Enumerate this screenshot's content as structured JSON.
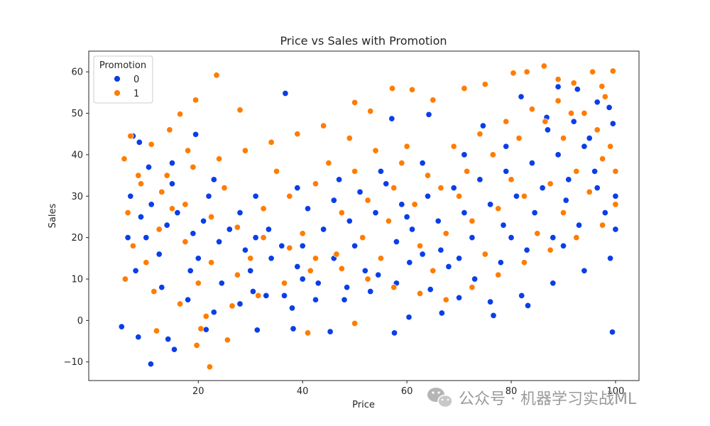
{
  "chart_data": {
    "type": "scatter",
    "title": "Price vs Sales with Promotion",
    "xlabel": "Price",
    "ylabel": "Sales",
    "xlim": [
      -1.0,
      104.5
    ],
    "ylim": [
      -14.5,
      65.0
    ],
    "xticks": [
      20,
      40,
      60,
      80,
      100
    ],
    "yticks": [
      -10,
      0,
      10,
      20,
      30,
      40,
      50,
      60
    ],
    "legend": {
      "title": "Promotion",
      "placement": "top-left"
    },
    "series": [
      {
        "name": "0",
        "color": "#0a3ee8",
        "points": [
          [
            5.3,
            -1.5
          ],
          [
            10.9,
            -10.5
          ],
          [
            15.4,
            -7.0
          ],
          [
            14.2,
            -4.5
          ],
          [
            8.5,
            -4.0
          ],
          [
            21.5,
            -2.2
          ],
          [
            31.3,
            -2.3
          ],
          [
            38.2,
            -2.0
          ],
          [
            45.3,
            -2.7
          ],
          [
            57.6,
            -3.0
          ],
          [
            99.4,
            -2.8
          ],
          [
            83.2,
            3.6
          ],
          [
            76.6,
            1.2
          ],
          [
            66.7,
            1.8
          ],
          [
            60.4,
            0.8
          ],
          [
            36.7,
            54.8
          ],
          [
            89.0,
            56.4
          ],
          [
            92.7,
            55.8
          ],
          [
            96.5,
            52.7
          ],
          [
            98.8,
            51.4
          ],
          [
            81.9,
            54.0
          ],
          [
            86.8,
            49.0
          ],
          [
            7.5,
            44.5
          ],
          [
            8.7,
            43.0
          ],
          [
            19.5,
            44.9
          ],
          [
            57.1,
            48.7
          ],
          [
            64.2,
            49.7
          ],
          [
            74.6,
            47.0
          ],
          [
            92.0,
            48.0
          ],
          [
            99.5,
            47.5
          ],
          [
            10.5,
            37.0
          ],
          [
            15.0,
            33.0
          ],
          [
            22.0,
            30.0
          ],
          [
            28.0,
            26.0
          ],
          [
            33.5,
            22.0
          ],
          [
            40.0,
            18.0
          ],
          [
            46.0,
            15.0
          ],
          [
            52.0,
            12.0
          ],
          [
            58.0,
            9.0
          ],
          [
            64.5,
            7.5
          ],
          [
            70.0,
            5.5
          ],
          [
            76.0,
            4.5
          ],
          [
            82.0,
            6.0
          ],
          [
            88.0,
            9.0
          ],
          [
            94.0,
            12.0
          ],
          [
            99.0,
            15.0
          ],
          [
            6.5,
            20.0
          ],
          [
            12.5,
            16.0
          ],
          [
            18.5,
            12.0
          ],
          [
            24.5,
            9.0
          ],
          [
            30.5,
            7.0
          ],
          [
            36.5,
            6.0
          ],
          [
            42.5,
            5.0
          ],
          [
            48.5,
            8.0
          ],
          [
            54.5,
            11.0
          ],
          [
            60.5,
            14.0
          ],
          [
            66.5,
            17.0
          ],
          [
            72.5,
            20.0
          ],
          [
            78.5,
            23.0
          ],
          [
            84.5,
            26.0
          ],
          [
            90.5,
            29.0
          ],
          [
            96.5,
            32.0
          ],
          [
            9.0,
            25.0
          ],
          [
            14.0,
            23.0
          ],
          [
            19.0,
            21.0
          ],
          [
            24.0,
            19.0
          ],
          [
            29.0,
            17.0
          ],
          [
            34.0,
            15.0
          ],
          [
            39.0,
            13.0
          ],
          [
            44.0,
            22.0
          ],
          [
            49.0,
            24.0
          ],
          [
            54.0,
            26.0
          ],
          [
            59.0,
            28.0
          ],
          [
            64.0,
            30.0
          ],
          [
            69.0,
            32.0
          ],
          [
            74.0,
            34.0
          ],
          [
            79.0,
            36.0
          ],
          [
            84.0,
            38.0
          ],
          [
            89.0,
            40.0
          ],
          [
            94.0,
            42.0
          ],
          [
            7.0,
            30.0
          ],
          [
            11.0,
            28.0
          ],
          [
            16.0,
            26.0
          ],
          [
            21.0,
            24.0
          ],
          [
            26.0,
            22.0
          ],
          [
            31.0,
            20.0
          ],
          [
            36.0,
            18.0
          ],
          [
            41.0,
            27.0
          ],
          [
            46.0,
            29.0
          ],
          [
            51.0,
            31.0
          ],
          [
            56.0,
            33.0
          ],
          [
            61.0,
            22.0
          ],
          [
            66.0,
            24.0
          ],
          [
            71.0,
            26.0
          ],
          [
            76.0,
            28.0
          ],
          [
            81.0,
            30.0
          ],
          [
            86.0,
            32.0
          ],
          [
            91.0,
            34.0
          ],
          [
            96.0,
            36.0
          ],
          [
            100.0,
            30.0
          ],
          [
            8.0,
            12.0
          ],
          [
            13.0,
            8.0
          ],
          [
            18.0,
            5.0
          ],
          [
            23.0,
            2.0
          ],
          [
            28.0,
            4.0
          ],
          [
            33.0,
            6.0
          ],
          [
            38.0,
            3.0
          ],
          [
            43.0,
            9.0
          ],
          [
            48.0,
            5.0
          ],
          [
            53.0,
            7.0
          ],
          [
            58.0,
            19.0
          ],
          [
            63.0,
            16.0
          ],
          [
            68.0,
            13.0
          ],
          [
            73.0,
            10.0
          ],
          [
            78.0,
            14.0
          ],
          [
            83.0,
            17.0
          ],
          [
            88.0,
            20.0
          ],
          [
            93.0,
            23.0
          ],
          [
            98.0,
            26.0
          ],
          [
            95.0,
            44.0
          ],
          [
            87.0,
            46.0
          ],
          [
            79.0,
            42.0
          ],
          [
            71.0,
            40.0
          ],
          [
            63.0,
            38.0
          ],
          [
            55.0,
            36.0
          ],
          [
            47.0,
            34.0
          ],
          [
            39.0,
            32.0
          ],
          [
            31.0,
            30.0
          ],
          [
            23.0,
            34.0
          ],
          [
            15.0,
            38.0
          ],
          [
            10.0,
            20.0
          ],
          [
            20.0,
            15.0
          ],
          [
            30.0,
            12.0
          ],
          [
            40.0,
            10.0
          ],
          [
            50.0,
            18.0
          ],
          [
            60.0,
            25.0
          ],
          [
            70.0,
            15.0
          ],
          [
            80.0,
            20.0
          ],
          [
            90.0,
            18.0
          ],
          [
            100.0,
            22.0
          ]
        ]
      },
      {
        "name": "1",
        "color": "#ff7c00",
        "points": [
          [
            22.2,
            -11.2
          ],
          [
            19.7,
            -6.0
          ],
          [
            25.6,
            -4.7
          ],
          [
            20.5,
            -2.0
          ],
          [
            41.0,
            -3.0
          ],
          [
            12.0,
            -2.5
          ],
          [
            50.0,
            -0.7
          ],
          [
            23.5,
            59.2
          ],
          [
            19.5,
            53.2
          ],
          [
            28.0,
            50.8
          ],
          [
            86.3,
            61.4
          ],
          [
            80.4,
            59.7
          ],
          [
            83.0,
            60.0
          ],
          [
            95.6,
            60.0
          ],
          [
            99.5,
            60.2
          ],
          [
            89.0,
            58.2
          ],
          [
            97.4,
            56.5
          ],
          [
            92.0,
            57.3
          ],
          [
            57.2,
            56.0
          ],
          [
            61.0,
            55.7
          ],
          [
            71.0,
            56.0
          ],
          [
            75.0,
            57.0
          ],
          [
            65.0,
            53.2
          ],
          [
            50.0,
            52.6
          ],
          [
            53.0,
            50.5
          ],
          [
            16.5,
            49.8
          ],
          [
            14.5,
            46.0
          ],
          [
            7.0,
            44.5
          ],
          [
            11.0,
            42.5
          ],
          [
            5.8,
            39.0
          ],
          [
            8.5,
            35.0
          ],
          [
            13.0,
            31.0
          ],
          [
            17.5,
            28.0
          ],
          [
            22.5,
            25.0
          ],
          [
            27.5,
            22.5
          ],
          [
            32.5,
            20.0
          ],
          [
            37.5,
            17.5
          ],
          [
            42.5,
            15.0
          ],
          [
            47.5,
            12.5
          ],
          [
            52.5,
            10.0
          ],
          [
            57.5,
            8.0
          ],
          [
            62.5,
            6.5
          ],
          [
            67.5,
            5.0
          ],
          [
            72.5,
            8.0
          ],
          [
            77.5,
            11.0
          ],
          [
            82.5,
            14.0
          ],
          [
            87.5,
            17.0
          ],
          [
            92.5,
            20.0
          ],
          [
            97.5,
            23.0
          ],
          [
            100.0,
            28.0
          ],
          [
            6.0,
            10.0
          ],
          [
            11.5,
            7.0
          ],
          [
            16.5,
            4.0
          ],
          [
            21.5,
            1.0
          ],
          [
            26.5,
            3.5
          ],
          [
            31.5,
            6.0
          ],
          [
            36.5,
            9.0
          ],
          [
            41.5,
            12.0
          ],
          [
            46.5,
            16.0
          ],
          [
            51.5,
            20.0
          ],
          [
            56.5,
            24.0
          ],
          [
            61.5,
            28.0
          ],
          [
            66.5,
            32.0
          ],
          [
            71.5,
            36.0
          ],
          [
            76.5,
            40.0
          ],
          [
            81.5,
            44.0
          ],
          [
            86.5,
            48.0
          ],
          [
            91.5,
            50.0
          ],
          [
            96.5,
            46.0
          ],
          [
            99.0,
            42.0
          ],
          [
            9.0,
            33.0
          ],
          [
            14.0,
            35.0
          ],
          [
            19.0,
            37.0
          ],
          [
            24.0,
            39.0
          ],
          [
            29.0,
            41.0
          ],
          [
            34.0,
            43.0
          ],
          [
            39.0,
            45.0
          ],
          [
            44.0,
            47.0
          ],
          [
            49.0,
            44.0
          ],
          [
            54.0,
            41.0
          ],
          [
            59.0,
            38.0
          ],
          [
            64.0,
            35.0
          ],
          [
            69.0,
            42.0
          ],
          [
            74.0,
            45.0
          ],
          [
            79.0,
            48.0
          ],
          [
            84.0,
            51.0
          ],
          [
            89.0,
            53.0
          ],
          [
            94.0,
            50.0
          ],
          [
            98.0,
            54.0
          ],
          [
            7.5,
            18.0
          ],
          [
            12.5,
            22.0
          ],
          [
            17.5,
            19.0
          ],
          [
            22.5,
            14.0
          ],
          [
            27.5,
            11.0
          ],
          [
            32.5,
            27.0
          ],
          [
            37.5,
            30.0
          ],
          [
            42.5,
            33.0
          ],
          [
            47.5,
            26.0
          ],
          [
            52.5,
            29.0
          ],
          [
            57.5,
            32.0
          ],
          [
            62.5,
            18.0
          ],
          [
            67.5,
            21.0
          ],
          [
            72.5,
            24.0
          ],
          [
            77.5,
            27.0
          ],
          [
            82.5,
            30.0
          ],
          [
            87.5,
            33.0
          ],
          [
            92.5,
            36.0
          ],
          [
            97.5,
            39.0
          ],
          [
            95.0,
            31.0
          ],
          [
            90.0,
            26.0
          ],
          [
            85.0,
            21.0
          ],
          [
            75.0,
            16.0
          ],
          [
            65.0,
            12.0
          ],
          [
            55.0,
            15.0
          ],
          [
            45.0,
            38.0
          ],
          [
            35.0,
            36.0
          ],
          [
            25.0,
            32.0
          ],
          [
            15.0,
            27.0
          ],
          [
            10.0,
            14.0
          ],
          [
            20.0,
            9.0
          ],
          [
            30.0,
            15.0
          ],
          [
            40.0,
            21.0
          ],
          [
            50.0,
            36.0
          ],
          [
            60.0,
            42.0
          ],
          [
            70.0,
            30.0
          ],
          [
            80.0,
            34.0
          ],
          [
            90.0,
            44.0
          ],
          [
            100.0,
            36.0
          ],
          [
            6.5,
            26.0
          ],
          [
            18.0,
            41.0
          ]
        ]
      }
    ]
  },
  "watermark": {
    "text": "公众号 · 机器学习实战ML",
    "icon": "wechat-icon"
  }
}
